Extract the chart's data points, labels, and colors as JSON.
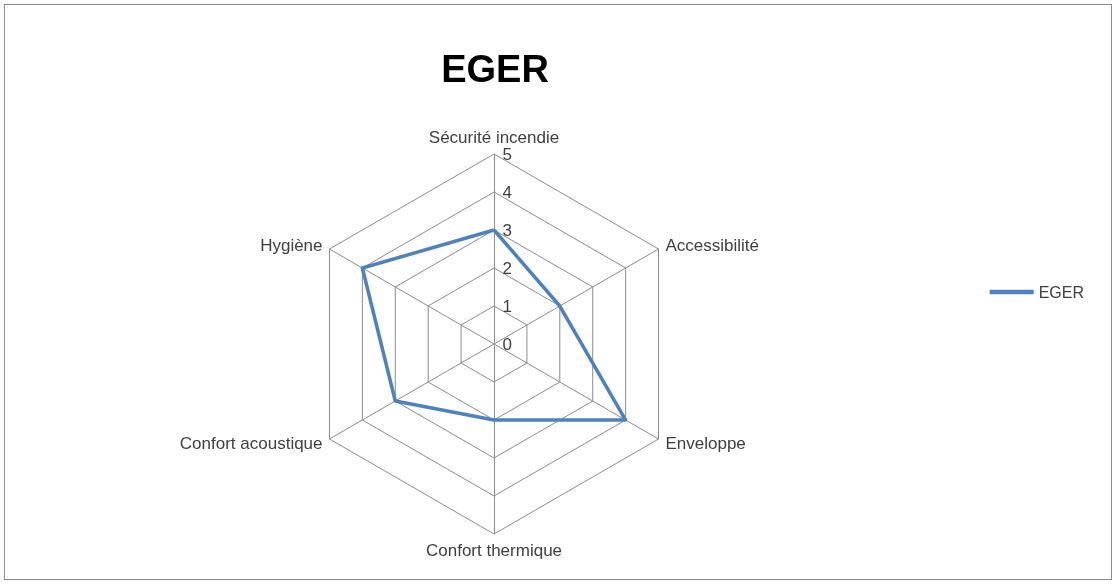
{
  "chart_data": {
    "type": "radar",
    "title": "EGER",
    "categories": [
      "Sécurité incendie",
      "Accessibilité",
      "Enveloppe",
      "Confort thermique",
      "Confort acoustique",
      "Hygiène"
    ],
    "series": [
      {
        "name": "EGER",
        "color": "#4f81bd",
        "values": [
          3,
          2,
          4,
          2,
          3,
          4
        ]
      }
    ],
    "ylim": [
      0,
      5
    ],
    "yticks": [
      0,
      1,
      2,
      3,
      4,
      5
    ],
    "grid": true,
    "legend": "right",
    "marker": "none",
    "line_style": "solid"
  }
}
